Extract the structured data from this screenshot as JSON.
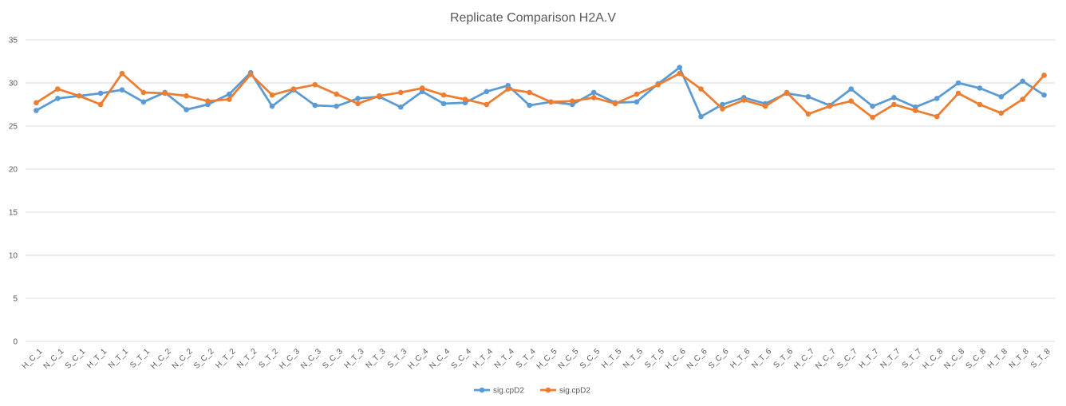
{
  "chart_data": {
    "type": "line",
    "title": "Replicate Comparison H2A.V",
    "xlabel": "",
    "ylabel": "",
    "ylim": [
      0,
      35
    ],
    "yticks": [
      0,
      5,
      10,
      15,
      20,
      25,
      30,
      35
    ],
    "grid": true,
    "legend_position": "bottom",
    "categories": [
      "H_C_1",
      "N_C_1",
      "S_C_1",
      "H_T_1",
      "N_T_1",
      "S_T_1",
      "H_C_2",
      "N_C_2",
      "S_C_2",
      "H_T_2",
      "N_T_2",
      "S_T_2",
      "H_C_3",
      "N_C_3",
      "S_C_3",
      "H_T_3",
      "N_T_3",
      "S_T_3",
      "H_C_4",
      "N_C_4",
      "S_C_4",
      "H_T_4",
      "N_T_4",
      "S_T_4",
      "H_C_5",
      "N_C_5",
      "S_C_5",
      "H_T_5",
      "N_T_5",
      "S_T_5",
      "H_C_6",
      "N_C_6",
      "S_C_6",
      "H_T_6",
      "N_T_6",
      "S_T_6",
      "H_C_7",
      "N_C_7",
      "S_C_7",
      "H_T_7",
      "N_T_7",
      "S_T_7",
      "H_C_8",
      "N_C_8",
      "S_C_8",
      "H_T_8",
      "N_T_8",
      "S_T_8"
    ],
    "series": [
      {
        "name": "sig.cpD2",
        "color": "#5B9BD5",
        "values": [
          26.8,
          28.2,
          28.5,
          28.8,
          29.2,
          27.8,
          28.9,
          26.9,
          27.5,
          28.7,
          31.2,
          27.3,
          29.2,
          27.4,
          27.3,
          28.2,
          28.4,
          27.2,
          29.0,
          27.6,
          27.7,
          29.0,
          29.7,
          27.4,
          27.8,
          27.5,
          28.9,
          27.7,
          27.8,
          29.9,
          31.8,
          26.1,
          27.5,
          28.3,
          27.6,
          28.8,
          28.4,
          27.4,
          29.3,
          27.3,
          28.3,
          27.2,
          28.2,
          30.0,
          29.4,
          28.4,
          30.2,
          28.6
        ]
      },
      {
        "name": "sig.cpD2",
        "color": "#ED7D31",
        "values": [
          27.7,
          29.3,
          28.5,
          27.5,
          31.1,
          28.9,
          28.8,
          28.5,
          27.9,
          28.1,
          31.0,
          28.6,
          29.3,
          29.8,
          28.7,
          27.6,
          28.5,
          28.9,
          29.4,
          28.6,
          28.1,
          27.5,
          29.3,
          28.9,
          27.8,
          27.9,
          28.3,
          27.6,
          28.7,
          29.8,
          31.1,
          29.3,
          27.0,
          28.0,
          27.3,
          28.9,
          26.4,
          27.3,
          27.9,
          26.0,
          27.5,
          26.8,
          26.1,
          28.8,
          27.5,
          26.5,
          28.1,
          30.9
        ]
      }
    ]
  }
}
